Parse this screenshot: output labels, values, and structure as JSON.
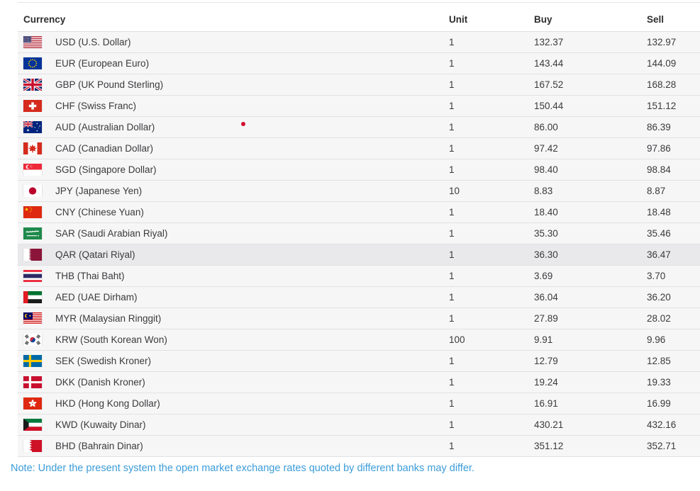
{
  "table": {
    "columns": [
      "Currency",
      "Unit",
      "Buy",
      "Sell"
    ],
    "rows": [
      {
        "flag": "usd",
        "label": "USD (U.S. Dollar)",
        "unit": "1",
        "buy": "132.37",
        "sell": "132.97",
        "highlighted": false
      },
      {
        "flag": "eur",
        "label": "EUR (European Euro)",
        "unit": "1",
        "buy": "143.44",
        "sell": "144.09",
        "highlighted": false
      },
      {
        "flag": "gbp",
        "label": "GBP (UK Pound Sterling)",
        "unit": "1",
        "buy": "167.52",
        "sell": "168.28",
        "highlighted": false
      },
      {
        "flag": "chf",
        "label": "CHF (Swiss Franc)",
        "unit": "1",
        "buy": "150.44",
        "sell": "151.12",
        "highlighted": false
      },
      {
        "flag": "aud",
        "label": "AUD (Australian Dollar)",
        "unit": "1",
        "buy": "86.00",
        "sell": "86.39",
        "highlighted": false
      },
      {
        "flag": "cad",
        "label": "CAD (Canadian Dollar)",
        "unit": "1",
        "buy": "97.42",
        "sell": "97.86",
        "highlighted": false
      },
      {
        "flag": "sgd",
        "label": "SGD (Singapore Dollar)",
        "unit": "1",
        "buy": "98.40",
        "sell": "98.84",
        "highlighted": false
      },
      {
        "flag": "jpy",
        "label": "JPY (Japanese Yen)",
        "unit": "10",
        "buy": "8.83",
        "sell": "8.87",
        "highlighted": false
      },
      {
        "flag": "cny",
        "label": "CNY (Chinese Yuan)",
        "unit": "1",
        "buy": "18.40",
        "sell": "18.48",
        "highlighted": false
      },
      {
        "flag": "sar",
        "label": "SAR (Saudi Arabian Riyal)",
        "unit": "1",
        "buy": "35.30",
        "sell": "35.46",
        "highlighted": false
      },
      {
        "flag": "qar",
        "label": "QAR (Qatari Riyal)",
        "unit": "1",
        "buy": "36.30",
        "sell": "36.47",
        "highlighted": true
      },
      {
        "flag": "thb",
        "label": "THB (Thai Baht)",
        "unit": "1",
        "buy": "3.69",
        "sell": "3.70",
        "highlighted": false
      },
      {
        "flag": "aed",
        "label": "AED (UAE Dirham)",
        "unit": "1",
        "buy": "36.04",
        "sell": "36.20",
        "highlighted": false
      },
      {
        "flag": "myr",
        "label": "MYR (Malaysian Ringgit)",
        "unit": "1",
        "buy": "27.89",
        "sell": "28.02",
        "highlighted": false
      },
      {
        "flag": "krw",
        "label": "KRW (South Korean Won)",
        "unit": "100",
        "buy": "9.91",
        "sell": "9.96",
        "highlighted": false
      },
      {
        "flag": "sek",
        "label": "SEK (Swedish Kroner)",
        "unit": "1",
        "buy": "12.79",
        "sell": "12.85",
        "highlighted": false
      },
      {
        "flag": "dkk",
        "label": "DKK (Danish Kroner)",
        "unit": "1",
        "buy": "19.24",
        "sell": "19.33",
        "highlighted": false
      },
      {
        "flag": "hkd",
        "label": "HKD (Hong Kong Dollar)",
        "unit": "1",
        "buy": "16.91",
        "sell": "16.99",
        "highlighted": false
      },
      {
        "flag": "kwd",
        "label": "KWD (Kuwaity Dinar)",
        "unit": "1",
        "buy": "430.21",
        "sell": "432.16",
        "highlighted": false
      },
      {
        "flag": "bhd",
        "label": "BHD (Bahrain Dinar)",
        "unit": "1",
        "buy": "351.12",
        "sell": "352.71",
        "highlighted": false
      }
    ]
  },
  "note": {
    "text": "Note: Under the present system the open market exchange rates quoted by different banks may differ."
  },
  "colors": {
    "row_background": "#f6f6f7",
    "row_highlight": "#e9e9eb",
    "row_border": "#e2e2e5",
    "header_text": "#2e2e30",
    "body_text": "#3a3a3c",
    "note_blue": "#3b9cd9",
    "artifact_red": "#d20f2f"
  }
}
